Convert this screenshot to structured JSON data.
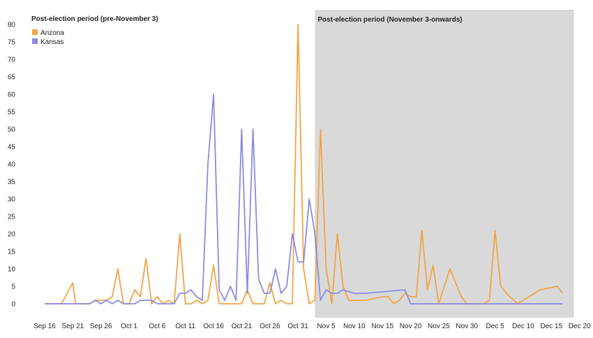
{
  "chart_data": {
    "type": "line",
    "period_labels": {
      "pre": "Post-election period (pre-November 3)",
      "post": "Post-election period (November 3-onwards)"
    },
    "ylim": [
      0,
      80
    ],
    "y_ticks": [
      0,
      5,
      10,
      15,
      20,
      25,
      30,
      35,
      40,
      45,
      50,
      55,
      60,
      65,
      70,
      75,
      80
    ],
    "x_start": "Sep 16",
    "x_tick_labels": [
      "Sep 16",
      "Sep 21",
      "Sep 26",
      "Oct 1",
      "Oct 6",
      "Oct 11",
      "Oct 16",
      "Oct 21",
      "Oct 26",
      "Oct 31",
      "Nov 5",
      "Nov 10",
      "Nov 15",
      "Nov 20",
      "Nov 25",
      "Nov 30",
      "Dec 5",
      "Dec 10",
      "Dec 15",
      "Dec 20"
    ],
    "shaded_region": {
      "from": "Nov 3",
      "to": "Dec 19",
      "color": "#d9d9d9"
    },
    "grid": false,
    "legend_position": "top-left",
    "series": [
      {
        "name": "Arizona",
        "color": "#f2a444",
        "x": [
          "Sep 16",
          "Sep 19",
          "Sep 21",
          "Sep 21.5",
          "Sep 22",
          "Sep 24",
          "Sep 25",
          "Sep 26",
          "Sep 27",
          "Sep 28",
          "Sep 29",
          "Sep 30",
          "Oct 1",
          "Oct 2",
          "Oct 3",
          "Oct 4",
          "Oct 5",
          "Oct 6",
          "Oct 7",
          "Oct 8",
          "Oct 9",
          "Oct 10",
          "Oct 11",
          "Oct 12",
          "Oct 13",
          "Oct 14",
          "Oct 15",
          "Oct 16",
          "Oct 17",
          "Oct 18",
          "Oct 19",
          "Oct 20",
          "Oct 21",
          "Oct 22",
          "Oct 23",
          "Oct 24",
          "Oct 25",
          "Oct 26",
          "Oct 27",
          "Oct 28",
          "Oct 29",
          "Oct 30",
          "Oct 31",
          "Nov 1",
          "Nov 2",
          "Nov 3",
          "Nov 4",
          "Nov 5",
          "Nov 6",
          "Nov 7",
          "Nov 8",
          "Nov 9",
          "Nov 10",
          "Nov 11",
          "Nov 12",
          "Nov 15",
          "Nov 16",
          "Nov 17",
          "Nov 18",
          "Nov 19",
          "Nov 20",
          "Nov 21",
          "Nov 22",
          "Nov 23",
          "Nov 24",
          "Nov 25",
          "Nov 26",
          "Nov 27",
          "Nov 29",
          "Nov 30",
          "Dec 3",
          "Dec 4",
          "Dec 5",
          "Dec 6",
          "Dec 7",
          "Dec 9",
          "Dec 13",
          "Dec 16",
          "Dec 17"
        ],
        "values": [
          0,
          0,
          6,
          0,
          0,
          0,
          1,
          1,
          1,
          2,
          10,
          0,
          0,
          4,
          2,
          13,
          0,
          2,
          0,
          1,
          0,
          20,
          0,
          0,
          1,
          0,
          1,
          11,
          0,
          0,
          0,
          0,
          0,
          4,
          0,
          0,
          0,
          6,
          0,
          1,
          0,
          0,
          80,
          10,
          0,
          1,
          50,
          10,
          0,
          20,
          5,
          1,
          1,
          1,
          1,
          2,
          2,
          0,
          1,
          3,
          2,
          2,
          21,
          4,
          11,
          0,
          5,
          10,
          2,
          0,
          0,
          1,
          21,
          5,
          3,
          0,
          4,
          5,
          3
        ]
      },
      {
        "name": "Kansas",
        "color": "#8b8be0",
        "x": [
          "Sep 16",
          "Sep 18",
          "Sep 20",
          "Sep 21",
          "Sep 22",
          "Sep 23",
          "Sep 24",
          "Sep 25",
          "Sep 26",
          "Sep 27",
          "Sep 28",
          "Sep 29",
          "Sep 30",
          "Oct 1",
          "Oct 2",
          "Oct 3",
          "Oct 4",
          "Oct 5",
          "Oct 6",
          "Oct 7",
          "Oct 8",
          "Oct 9",
          "Oct 10",
          "Oct 11",
          "Oct 12",
          "Oct 13",
          "Oct 14",
          "Oct 15",
          "Oct 16",
          "Oct 17",
          "Oct 18",
          "Oct 19",
          "Oct 20",
          "Oct 21",
          "Oct 22",
          "Oct 23",
          "Oct 24",
          "Oct 25",
          "Oct 26",
          "Oct 27",
          "Oct 28",
          "Oct 29",
          "Oct 30",
          "Oct 31",
          "Nov 1",
          "Nov 2",
          "Nov 3",
          "Nov 4",
          "Nov 5",
          "Nov 6",
          "Nov 7",
          "Nov 8",
          "Nov 9",
          "Nov 10",
          "Nov 11",
          "Nov 12",
          "Nov 19",
          "Nov 20",
          "Dec 17"
        ],
        "values": [
          0,
          0,
          0,
          0,
          0,
          0,
          0,
          1,
          0,
          1,
          0,
          1,
          0,
          0,
          0,
          1,
          1,
          1,
          0,
          0,
          0,
          0,
          3,
          3,
          4,
          2,
          1,
          40,
          60,
          4,
          1,
          5,
          1,
          50,
          3,
          50,
          7,
          3,
          3,
          10,
          3,
          5,
          20,
          12,
          12,
          30,
          20,
          1,
          4,
          3,
          3,
          4,
          3.5,
          3,
          3,
          3,
          4,
          0,
          0
        ]
      }
    ]
  }
}
